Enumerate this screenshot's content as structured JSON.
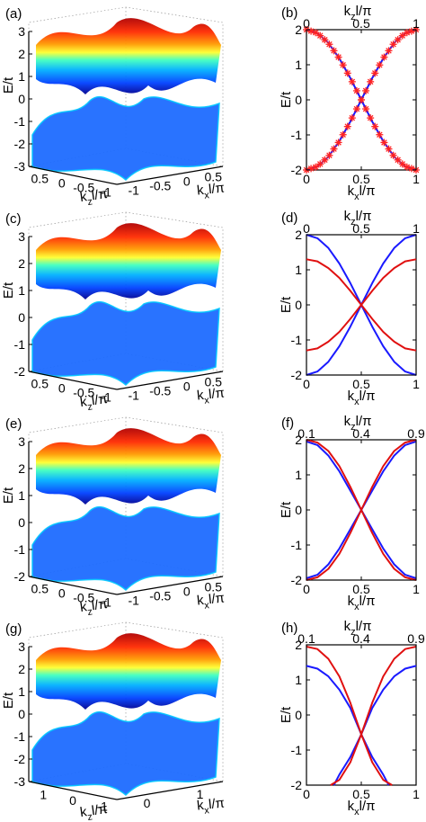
{
  "chart_data": [
    {
      "id": "a",
      "panel_label": "(a)",
      "type": "surface3d",
      "zlabel": "E/t",
      "xlabel_main": "k",
      "xlabel_sub": "z",
      "xlabel_tail": "l/π",
      "ylabel_main": "k",
      "ylabel_sub": "x",
      "ylabel_tail": "l/π",
      "zticks": [
        "3",
        "2",
        "1",
        "0",
        "-1",
        "-2",
        "-3"
      ],
      "xticks": [
        "0.5",
        "0",
        "-0.5",
        "-1"
      ],
      "yticks": [
        "-1",
        "-0.5",
        "0",
        "0.5"
      ],
      "zlim": [
        -3,
        3
      ],
      "colormap": "jet",
      "bands": 2
    },
    {
      "id": "b",
      "panel_label": "(b)",
      "type": "line",
      "ylabel": "E/t",
      "xlabel_main": "k",
      "xlabel_sub": "x",
      "xlabel_tail": "l/π",
      "toplabel_main": "k",
      "toplabel_sub": "z",
      "toplabel_tail": "l/π",
      "xlim": [
        0,
        1
      ],
      "ylim": [
        -2,
        2
      ],
      "yticks": [
        "2",
        "1",
        "0",
        "-1",
        "-2"
      ],
      "xticks": [
        "0",
        "0.5",
        "1"
      ],
      "top_ticks": [
        "0",
        "0.5",
        "1"
      ],
      "series": [
        {
          "color": "#1a1aff",
          "values": [
            [
              0,
              2
            ],
            [
              0.1,
              1.9
            ],
            [
              0.2,
              1.62
            ],
            [
              0.3,
              1.18
            ],
            [
              0.4,
              0.62
            ],
            [
              0.5,
              0
            ],
            [
              0.6,
              -0.62
            ],
            [
              0.7,
              -1.18
            ],
            [
              0.8,
              -1.62
            ],
            [
              0.9,
              -1.9
            ],
            [
              1,
              -2
            ]
          ]
        },
        {
          "color": "#1a1aff",
          "values": [
            [
              0,
              -2
            ],
            [
              0.1,
              -1.9
            ],
            [
              0.2,
              -1.62
            ],
            [
              0.3,
              -1.18
            ],
            [
              0.4,
              -0.62
            ],
            [
              0.5,
              0
            ],
            [
              0.6,
              0.62
            ],
            [
              0.7,
              1.18
            ],
            [
              0.8,
              1.62
            ],
            [
              0.9,
              1.9
            ],
            [
              1,
              2
            ]
          ]
        }
      ],
      "markers": {
        "color": "#ff2222",
        "symbol": "asterisk",
        "on_series": [
          0,
          1
        ],
        "count": 24
      }
    },
    {
      "id": "c",
      "panel_label": "(c)",
      "type": "surface3d",
      "zlabel": "E/t",
      "xlabel_main": "k",
      "xlabel_sub": "z",
      "xlabel_tail": "l/π",
      "ylabel_main": "k",
      "ylabel_sub": "x",
      "ylabel_tail": "l/π",
      "zticks": [
        "3",
        "2",
        "1",
        "0",
        "-1",
        "-2"
      ],
      "xticks": [
        "0.5",
        "0",
        "-0.5",
        "-1"
      ],
      "yticks": [
        "-1",
        "-0.5",
        "0",
        "0.5"
      ],
      "zlim": [
        -3,
        3
      ],
      "colormap": "jet",
      "bands": 2
    },
    {
      "id": "d",
      "panel_label": "(d)",
      "type": "line",
      "ylabel": "E/t",
      "xlabel_main": "k",
      "xlabel_sub": "x",
      "xlabel_tail": "l/π",
      "toplabel_main": "k",
      "toplabel_sub": "z",
      "toplabel_tail": "l/π",
      "xlim": [
        0,
        1
      ],
      "ylim": [
        -2,
        2
      ],
      "yticks": [
        "2",
        "1",
        "0",
        "-1",
        "-2"
      ],
      "xticks": [
        "0",
        "0.5",
        "1"
      ],
      "top_ticks": [
        "0",
        "0.5",
        "1"
      ],
      "series": [
        {
          "color": "#1a1aff",
          "values": [
            [
              0,
              2
            ],
            [
              0.1,
              1.9
            ],
            [
              0.2,
              1.62
            ],
            [
              0.3,
              1.18
            ],
            [
              0.4,
              0.62
            ],
            [
              0.5,
              0
            ],
            [
              0.6,
              -0.62
            ],
            [
              0.7,
              -1.18
            ],
            [
              0.8,
              -1.62
            ],
            [
              0.9,
              -1.9
            ],
            [
              1,
              -2
            ]
          ]
        },
        {
          "color": "#1a1aff",
          "values": [
            [
              0,
              -2
            ],
            [
              0.1,
              -1.9
            ],
            [
              0.2,
              -1.62
            ],
            [
              0.3,
              -1.18
            ],
            [
              0.4,
              -0.62
            ],
            [
              0.5,
              0
            ],
            [
              0.6,
              0.62
            ],
            [
              0.7,
              1.18
            ],
            [
              0.8,
              1.62
            ],
            [
              0.9,
              1.9
            ],
            [
              1,
              2
            ]
          ]
        },
        {
          "color": "#e01010",
          "values": [
            [
              0,
              1.3
            ],
            [
              0.1,
              1.24
            ],
            [
              0.2,
              1.05
            ],
            [
              0.3,
              0.77
            ],
            [
              0.4,
              0.4
            ],
            [
              0.5,
              0
            ],
            [
              0.6,
              -0.4
            ],
            [
              0.7,
              -0.77
            ],
            [
              0.8,
              -1.05
            ],
            [
              0.9,
              -1.24
            ],
            [
              1,
              -1.3
            ]
          ]
        },
        {
          "color": "#e01010",
          "values": [
            [
              0,
              -1.3
            ],
            [
              0.1,
              -1.24
            ],
            [
              0.2,
              -1.05
            ],
            [
              0.3,
              -0.77
            ],
            [
              0.4,
              -0.4
            ],
            [
              0.5,
              0
            ],
            [
              0.6,
              0.4
            ],
            [
              0.7,
              0.77
            ],
            [
              0.8,
              1.05
            ],
            [
              0.9,
              1.24
            ],
            [
              1,
              1.3
            ]
          ]
        }
      ]
    },
    {
      "id": "e",
      "panel_label": "(e)",
      "type": "surface3d",
      "zlabel": "E/t",
      "xlabel_main": "k",
      "xlabel_sub": "z",
      "xlabel_tail": "l/π",
      "ylabel_main": "k",
      "ylabel_sub": "x",
      "ylabel_tail": "l/π",
      "zticks": [
        "3",
        "2",
        "1",
        "0",
        "-1",
        "-2"
      ],
      "xticks": [
        "0.5",
        "0",
        "-0.5",
        "-1"
      ],
      "yticks": [
        "-1",
        "-0.5",
        "0",
        "0.5"
      ],
      "zlim": [
        -3,
        3
      ],
      "colormap": "jet",
      "bands": 2
    },
    {
      "id": "f",
      "panel_label": "(f)",
      "type": "line",
      "ylabel": "E/t",
      "xlabel_main": "k",
      "xlabel_sub": "x",
      "xlabel_tail": "l/π",
      "toplabel_main": "k",
      "toplabel_sub": "z",
      "toplabel_tail": "l/π",
      "xlim": [
        0,
        1
      ],
      "ylim": [
        -2,
        2
      ],
      "yticks": [
        "2",
        "1",
        "0",
        "-1",
        "-2"
      ],
      "xticks": [
        "0",
        "0.5",
        "1"
      ],
      "top_ticks": [
        "0.1",
        "0.4",
        "0.9"
      ],
      "series": [
        {
          "color": "#1a1aff",
          "values": [
            [
              0,
              1.95
            ],
            [
              0.1,
              1.85
            ],
            [
              0.2,
              1.55
            ],
            [
              0.3,
              1.1
            ],
            [
              0.4,
              0.55
            ],
            [
              0.5,
              0
            ],
            [
              0.6,
              -0.55
            ],
            [
              0.7,
              -1.1
            ],
            [
              0.8,
              -1.55
            ],
            [
              0.9,
              -1.85
            ],
            [
              1,
              -1.95
            ]
          ]
        },
        {
          "color": "#1a1aff",
          "values": [
            [
              0,
              -1.95
            ],
            [
              0.1,
              -1.85
            ],
            [
              0.2,
              -1.55
            ],
            [
              0.3,
              -1.1
            ],
            [
              0.4,
              -0.55
            ],
            [
              0.5,
              0
            ],
            [
              0.6,
              0.55
            ],
            [
              0.7,
              1.1
            ],
            [
              0.8,
              1.55
            ],
            [
              0.9,
              1.85
            ],
            [
              1,
              1.95
            ]
          ]
        },
        {
          "color": "#e01010",
          "values": [
            [
              0,
              2
            ],
            [
              0.1,
              1.92
            ],
            [
              0.2,
              1.68
            ],
            [
              0.3,
              1.25
            ],
            [
              0.4,
              0.66
            ],
            [
              0.5,
              0
            ],
            [
              0.6,
              -0.66
            ],
            [
              0.7,
              -1.25
            ],
            [
              0.8,
              -1.68
            ],
            [
              0.9,
              -1.92
            ],
            [
              1,
              -2
            ]
          ]
        },
        {
          "color": "#e01010",
          "values": [
            [
              0,
              -2
            ],
            [
              0.1,
              -1.92
            ],
            [
              0.2,
              -1.68
            ],
            [
              0.3,
              -1.25
            ],
            [
              0.4,
              -0.66
            ],
            [
              0.5,
              0
            ],
            [
              0.6,
              0.66
            ],
            [
              0.7,
              1.25
            ],
            [
              0.8,
              1.68
            ],
            [
              0.9,
              1.92
            ],
            [
              1,
              2
            ]
          ]
        }
      ]
    },
    {
      "id": "g",
      "panel_label": "(g)",
      "type": "surface3d",
      "zlabel": "E/t",
      "xlabel_main": "k",
      "xlabel_sub": "z",
      "xlabel_tail": "l/π",
      "ylabel_main": "k",
      "ylabel_sub": "x",
      "ylabel_tail": "l/π",
      "zticks": [
        "3",
        "2",
        "1",
        "0",
        "-1",
        "-2",
        "-3"
      ],
      "xticks": [
        "1",
        "0",
        "-1"
      ],
      "yticks": [
        "0",
        "1"
      ],
      "zlim": [
        -3,
        3
      ],
      "colormap": "jet",
      "bands": 2
    },
    {
      "id": "h",
      "panel_label": "(h)",
      "type": "line",
      "ylabel": "E/t",
      "xlabel_main": "k",
      "xlabel_sub": "x",
      "xlabel_tail": "l/π",
      "toplabel_main": "k",
      "toplabel_sub": "z",
      "toplabel_tail": "l/π",
      "xlim": [
        0,
        1
      ],
      "ylim": [
        -2,
        2
      ],
      "yticks": [
        "2",
        "1",
        "0",
        "-1",
        "-2"
      ],
      "xticks": [
        "0",
        "0.5",
        "1"
      ],
      "top_ticks": [
        "0.1",
        "0.4",
        "0.9"
      ],
      "series": [
        {
          "color": "#1a1aff",
          "values": [
            [
              0,
              1.4
            ],
            [
              0.1,
              1.32
            ],
            [
              0.2,
              1.1
            ],
            [
              0.3,
              0.72
            ],
            [
              0.4,
              0.2
            ],
            [
              0.5,
              -0.55
            ],
            [
              0.6,
              -1.2
            ],
            [
              0.7,
              -1.7
            ],
            [
              0.75,
              -2
            ]
          ]
        },
        {
          "color": "#1a1aff",
          "values": [
            [
              0.25,
              -2
            ],
            [
              0.3,
              -1.7
            ],
            [
              0.4,
              -1.2
            ],
            [
              0.5,
              -0.55
            ],
            [
              0.6,
              0.2
            ],
            [
              0.7,
              0.72
            ],
            [
              0.8,
              1.1
            ],
            [
              0.9,
              1.32
            ],
            [
              1,
              1.4
            ]
          ]
        },
        {
          "color": "#e01010",
          "values": [
            [
              0,
              1.95
            ],
            [
              0.1,
              1.88
            ],
            [
              0.2,
              1.6
            ],
            [
              0.3,
              1.1
            ],
            [
              0.4,
              0.35
            ],
            [
              0.5,
              -0.55
            ],
            [
              0.6,
              -1.35
            ],
            [
              0.7,
              -1.85
            ],
            [
              0.78,
              -2
            ]
          ]
        },
        {
          "color": "#e01010",
          "values": [
            [
              0.22,
              -2
            ],
            [
              0.3,
              -1.85
            ],
            [
              0.4,
              -1.35
            ],
            [
              0.5,
              -0.55
            ],
            [
              0.6,
              0.35
            ],
            [
              0.7,
              1.1
            ],
            [
              0.8,
              1.6
            ],
            [
              0.9,
              1.88
            ],
            [
              1,
              1.95
            ]
          ]
        }
      ]
    }
  ]
}
